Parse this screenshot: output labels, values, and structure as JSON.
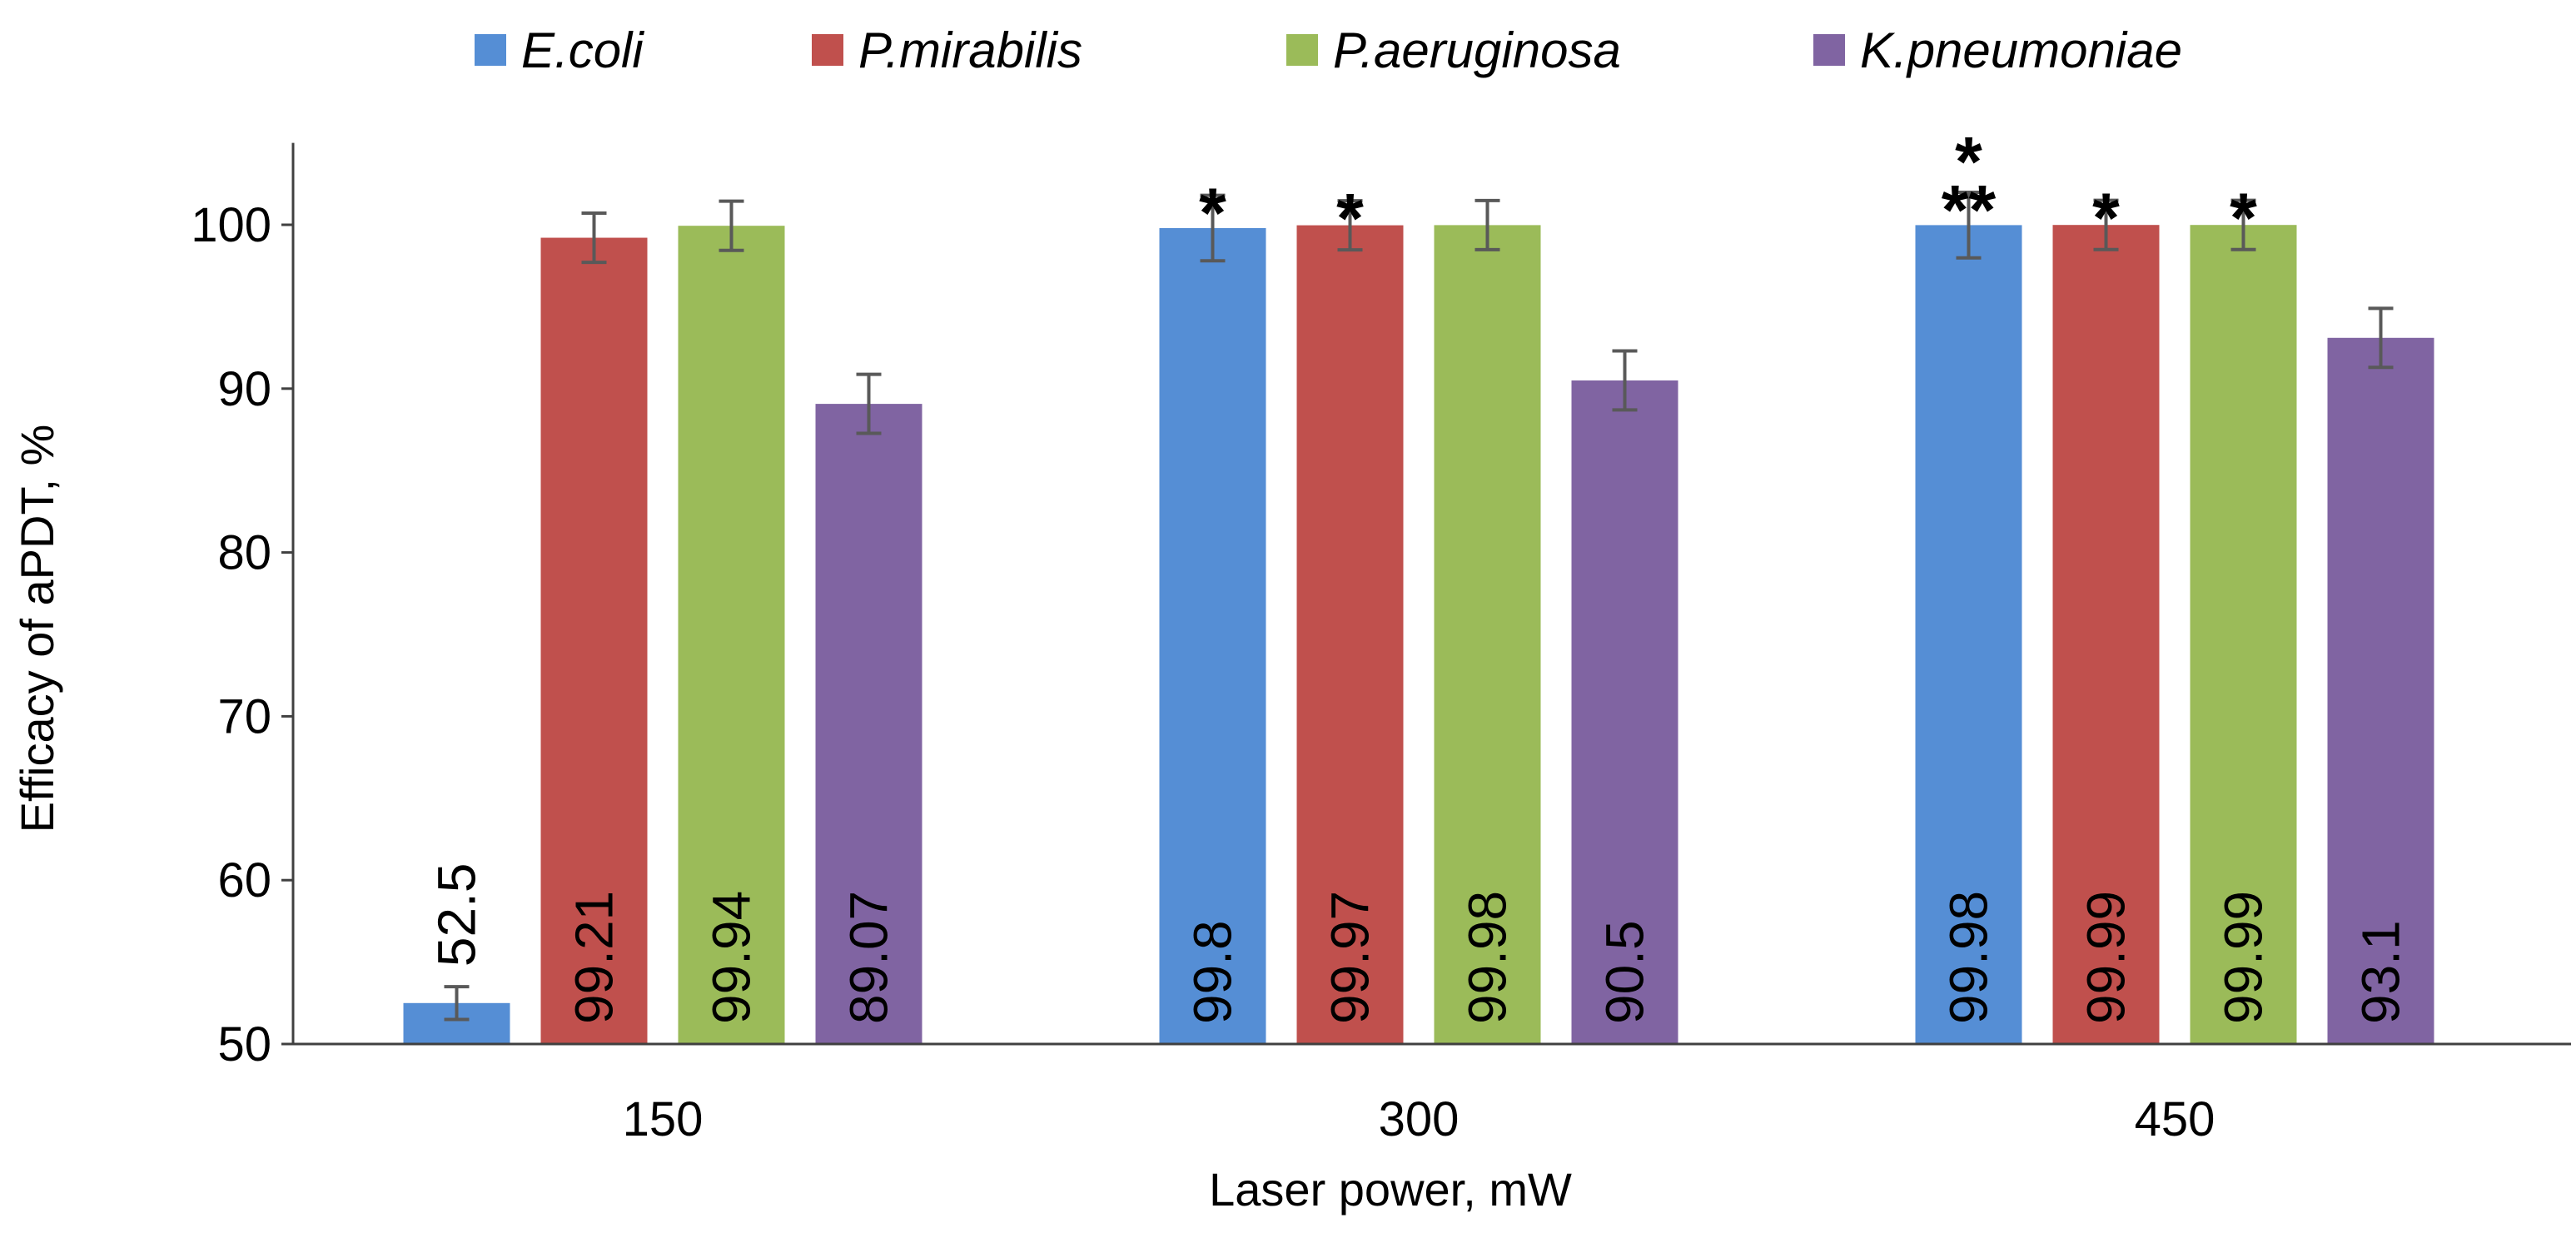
{
  "chart_data": {
    "type": "bar",
    "title": "",
    "xlabel": "Laser power, mW",
    "ylabel": "Efficacy of aPDT, %",
    "ylim": [
      50,
      105
    ],
    "yticks": [
      50,
      60,
      70,
      80,
      90,
      100
    ],
    "ytick_labels": [
      "50",
      "60",
      "70",
      "80",
      "90",
      "100"
    ],
    "grid": false,
    "legend_position": "top",
    "categories": [
      "150",
      "300",
      "450"
    ],
    "series": [
      {
        "name": "E.coli",
        "color": "#558ED5",
        "values": [
          52.5,
          99.8,
          99.98
        ],
        "value_labels": [
          "52.5",
          "99.8",
          "99.98"
        ],
        "errors": [
          1.0,
          2.0,
          2.0
        ],
        "annotations": [
          "",
          "*",
          "*\n**"
        ]
      },
      {
        "name": "P.mirabilis",
        "color": "#C0504D",
        "values": [
          99.21,
          99.97,
          99.99
        ],
        "value_labels": [
          "99.21",
          "99.97",
          "99.99"
        ],
        "errors": [
          1.5,
          1.5,
          1.5
        ],
        "annotations": [
          "",
          "*",
          "*"
        ]
      },
      {
        "name": "P.aeruginosa",
        "color": "#9BBB59",
        "values": [
          99.94,
          99.98,
          99.99
        ],
        "value_labels": [
          "99.94",
          "99.98",
          "99.99"
        ],
        "errors": [
          1.5,
          1.5,
          1.5
        ],
        "annotations": [
          "",
          "",
          "*"
        ]
      },
      {
        "name": "K.pneumoniae",
        "color": "#8064A2",
        "values": [
          89.07,
          90.5,
          93.1
        ],
        "value_labels": [
          "89.07",
          "90.5",
          "93.1"
        ],
        "errors": [
          1.8,
          1.8,
          1.8
        ],
        "annotations": [
          "",
          "",
          ""
        ]
      }
    ]
  }
}
